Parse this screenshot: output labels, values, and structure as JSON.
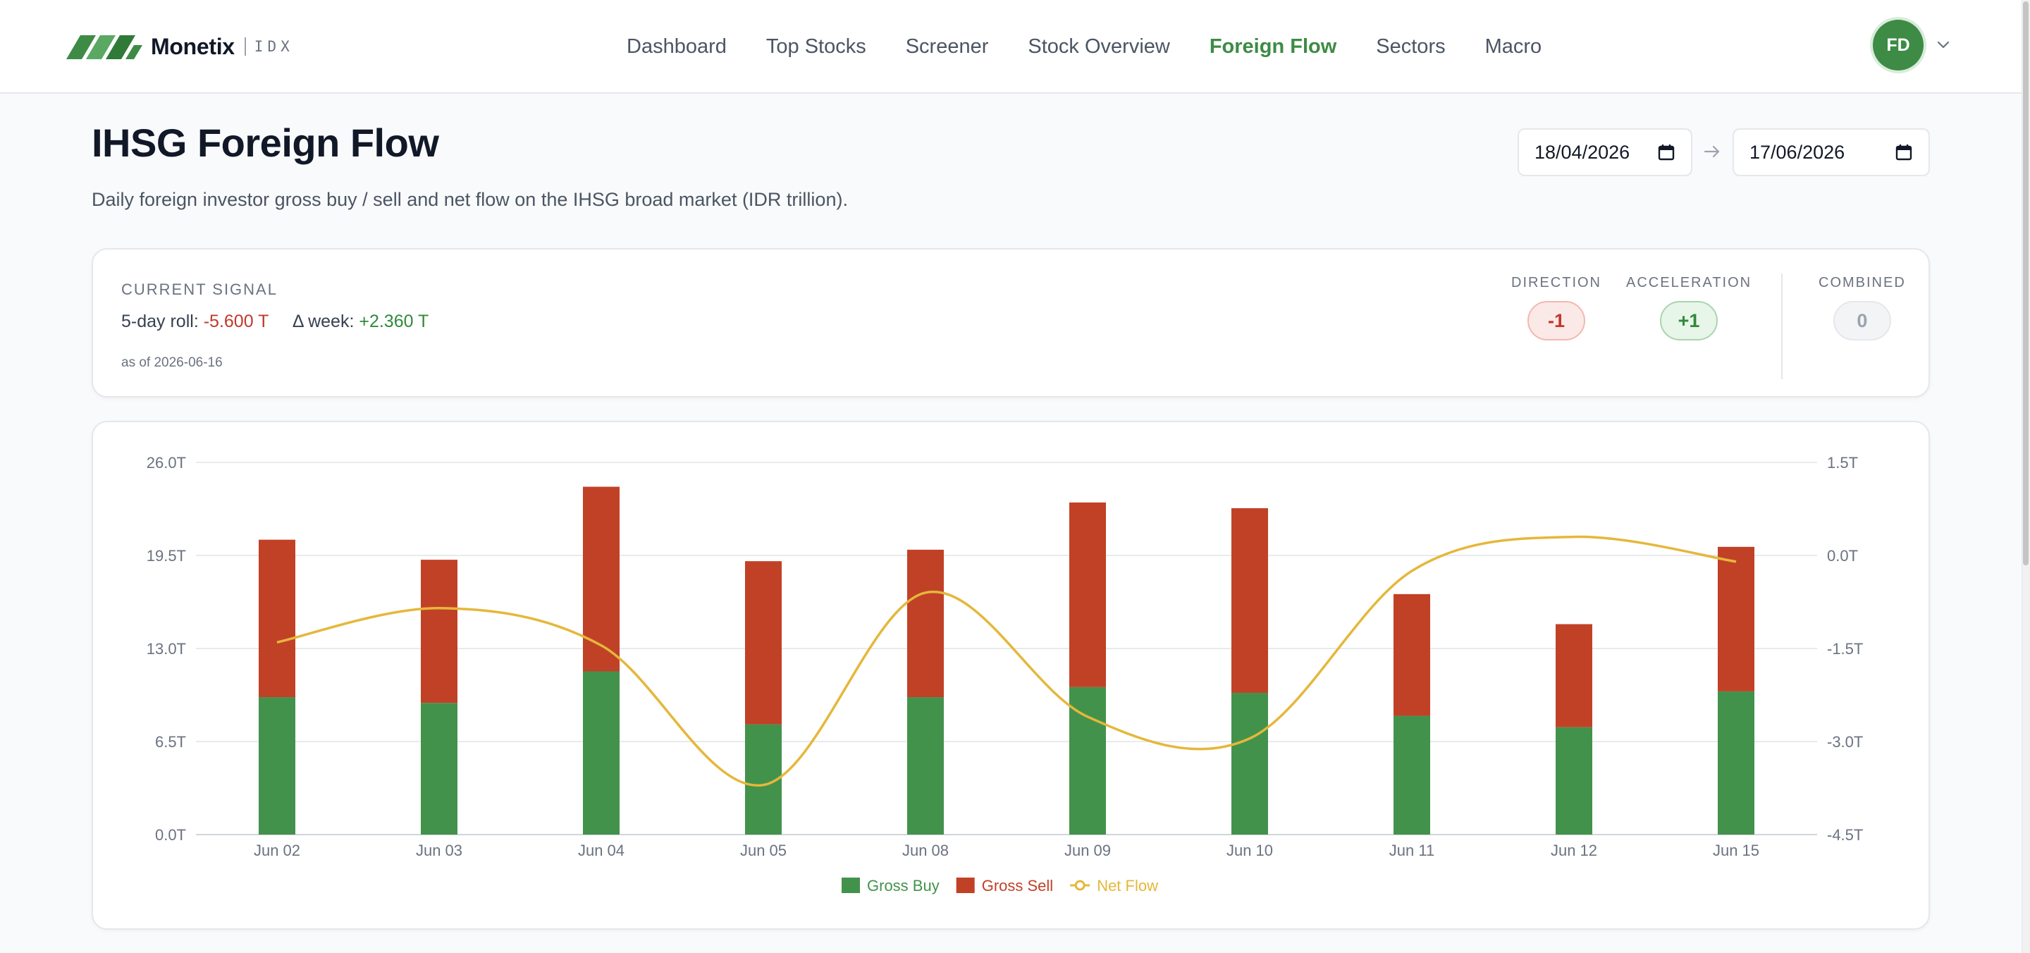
{
  "app": {
    "brand_name": "Monetix",
    "brand_sub": "IDX"
  },
  "nav": {
    "items": [
      {
        "label": "Dashboard",
        "active": false
      },
      {
        "label": "Top Stocks",
        "active": false
      },
      {
        "label": "Screener",
        "active": false
      },
      {
        "label": "Stock Overview",
        "active": false
      },
      {
        "label": "Foreign Flow",
        "active": true
      },
      {
        "label": "Sectors",
        "active": false
      },
      {
        "label": "Macro",
        "active": false
      }
    ]
  },
  "user": {
    "initials": "FD",
    "avatar_color": "#3d8b45"
  },
  "page": {
    "title": "IHSG Foreign Flow",
    "subtitle": "Daily foreign investor gross buy / sell and net flow on the IHSG broad market (IDR trillion)."
  },
  "date_range": {
    "from": "18/04/2026",
    "to": "17/06/2026"
  },
  "signal": {
    "label": "CURRENT SIGNAL",
    "roll_label": "5-day roll:",
    "roll_value": "-5.600 T",
    "week_label": "Δ week:",
    "week_value": "+2.360 T",
    "as_of": "as of 2026-06-16",
    "direction_label": "DIRECTION",
    "direction_value": "-1",
    "acceleration_label": "ACCELERATION",
    "acceleration_value": "+1",
    "combined_label": "COMBINED",
    "combined_value": "0"
  },
  "colors": {
    "accent": "#3d8b45",
    "buy": "#43924c",
    "sell": "#c14127",
    "net": "#e5b73b",
    "negative": "#c0392b",
    "positive": "#2f8a3b"
  },
  "chart_data": {
    "type": "bar",
    "stacked": true,
    "categories": [
      "Jun 02",
      "Jun 03",
      "Jun 04",
      "Jun 05",
      "Jun 08",
      "Jun 09",
      "Jun 10",
      "Jun 11",
      "Jun 12",
      "Jun 15"
    ],
    "series": [
      {
        "name": "Gross Buy",
        "type": "bar",
        "axis": "left",
        "color": "#43924c",
        "values": [
          9.6,
          9.2,
          11.4,
          7.7,
          9.6,
          10.3,
          9.9,
          8.3,
          7.5,
          10.0
        ]
      },
      {
        "name": "Gross Sell",
        "type": "bar",
        "axis": "left",
        "color": "#c14127",
        "values": [
          11.0,
          10.0,
          12.9,
          11.4,
          10.3,
          12.9,
          12.9,
          8.5,
          7.2,
          10.1
        ]
      },
      {
        "name": "Net Flow",
        "type": "line",
        "axis": "right",
        "color": "#e5b73b",
        "values": [
          -1.4,
          -0.85,
          -1.45,
          -3.7,
          -0.6,
          -2.6,
          -2.95,
          -0.25,
          0.3,
          -0.1
        ]
      }
    ],
    "y_left": {
      "min": 0,
      "max": 26,
      "ticks": [
        "0.0T",
        "6.5T",
        "13.0T",
        "19.5T",
        "26.0T"
      ]
    },
    "y_right": {
      "min": -4.5,
      "max": 1.5,
      "ticks": [
        "-4.5T",
        "-3.0T",
        "-1.5T",
        "0.0T",
        "1.5T"
      ]
    },
    "grid": true,
    "legend_position": "bottom-center",
    "legend": [
      "Gross Buy",
      "Gross Sell",
      "Net Flow"
    ]
  }
}
